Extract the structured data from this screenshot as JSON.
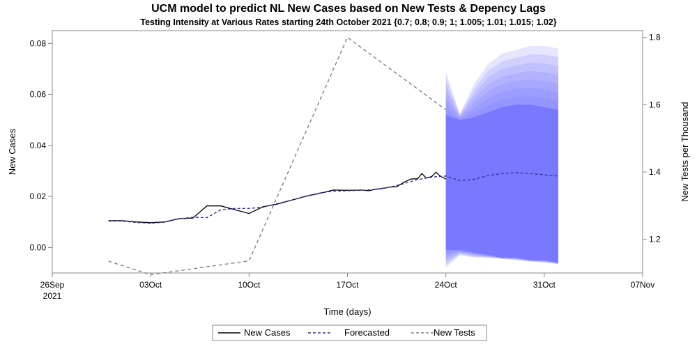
{
  "chart_data": {
    "type": "line",
    "title": "UCM model to predict NL New Cases based on New Tests & Depency Lags",
    "subtitle": "Testing Intensity at Various Rates starting 24th October 2021 {0.7; 0.8; 0.9; 1; 1.005; 1.01; 1.015; 1.02}",
    "xlabel": "Time (days)",
    "ylabel_left": "New Cases",
    "ylabel_right": "New Tests per Thousand",
    "x_range": [
      "2021-09-26",
      "2021-11-07"
    ],
    "y_left_range": [
      -0.01,
      0.085
    ],
    "y_right_range": [
      1.1,
      1.82
    ],
    "x_ticks": [
      {
        "date": "2021-09-26",
        "label": "26Sep",
        "sub": "2021"
      },
      {
        "date": "2021-10-03",
        "label": "03Oct",
        "sub": ""
      },
      {
        "date": "2021-10-10",
        "label": "10Oct",
        "sub": ""
      },
      {
        "date": "2021-10-17",
        "label": "17Oct",
        "sub": ""
      },
      {
        "date": "2021-10-24",
        "label": "24Oct",
        "sub": ""
      },
      {
        "date": "2021-10-31",
        "label": "31Oct",
        "sub": ""
      },
      {
        "date": "2021-11-07",
        "label": "07Nov",
        "sub": ""
      }
    ],
    "y_left_ticks": [
      0.0,
      0.02,
      0.04,
      0.06,
      0.08
    ],
    "y_left_tick_labels": [
      "0.00",
      "0.02",
      "0.04",
      "0.06",
      "0.08"
    ],
    "y_right_ticks": [
      1.2,
      1.4,
      1.6,
      1.8
    ],
    "y_right_tick_labels": [
      "1.2",
      "1.4",
      "1.6",
      "1.8"
    ],
    "series": [
      {
        "name": "New Cases",
        "axis": "left",
        "color": "#000000",
        "style": "solid",
        "points": [
          [
            "2021-09-30",
            0.0105
          ],
          [
            "2021-10-01",
            0.0105
          ],
          [
            "2021-10-02",
            0.01
          ],
          [
            "2021-10-03",
            0.0097
          ],
          [
            "2021-10-04",
            0.01
          ],
          [
            "2021-10-05",
            0.0113
          ],
          [
            "2021-10-06",
            0.0115
          ],
          [
            "2021-10-07",
            0.0163
          ],
          [
            "2021-10-08",
            0.0163
          ],
          [
            "2021-10-09",
            0.0148
          ],
          [
            "2021-10-10",
            0.0133
          ],
          [
            "2021-10-11",
            0.016
          ],
          [
            "2021-10-12",
            0.017
          ],
          [
            "2021-10-13",
            0.0185
          ],
          [
            "2021-10-14",
            0.02
          ],
          [
            "2021-10-15",
            0.0212
          ],
          [
            "2021-10-16",
            0.0225
          ],
          [
            "2021-10-17",
            0.0224
          ],
          [
            "2021-10-18",
            0.0225
          ],
          [
            "2021-10-18.5",
            0.0222
          ],
          [
            "2021-10-19",
            0.0228
          ],
          [
            "2021-10-19.5",
            0.0231
          ],
          [
            "2021-10-20",
            0.0237
          ],
          [
            "2021-10-20.5",
            0.0238
          ],
          [
            "2021-10-21",
            0.0255
          ],
          [
            "2021-10-21.5",
            0.0268
          ],
          [
            "2021-10-22",
            0.027
          ],
          [
            "2021-10-22.3",
            0.029
          ],
          [
            "2021-10-22.6",
            0.0272
          ],
          [
            "2021-10-23",
            0.0278
          ],
          [
            "2021-10-23.3",
            0.0295
          ],
          [
            "2021-10-23.6",
            0.028
          ],
          [
            "2021-10-24",
            0.0268
          ]
        ]
      },
      {
        "name": "Forecasted",
        "axis": "left",
        "color": "#333399",
        "style": "dashed",
        "points": [
          [
            "2021-09-30",
            0.0103
          ],
          [
            "2021-10-01",
            0.0103
          ],
          [
            "2021-10-02",
            0.0098
          ],
          [
            "2021-10-03",
            0.0095
          ],
          [
            "2021-10-04",
            0.0099
          ],
          [
            "2021-10-05",
            0.0112
          ],
          [
            "2021-10-06",
            0.0118
          ],
          [
            "2021-10-07",
            0.0117
          ],
          [
            "2021-10-08",
            0.0148
          ],
          [
            "2021-10-09",
            0.0153
          ],
          [
            "2021-10-10",
            0.0153
          ],
          [
            "2021-10-11",
            0.0158
          ],
          [
            "2021-10-12",
            0.0172
          ],
          [
            "2021-10-13",
            0.0185
          ],
          [
            "2021-10-14",
            0.0201
          ],
          [
            "2021-10-15",
            0.0213
          ],
          [
            "2021-10-16",
            0.0221
          ],
          [
            "2021-10-17",
            0.0222
          ],
          [
            "2021-10-18",
            0.0224
          ],
          [
            "2021-10-19",
            0.0228
          ],
          [
            "2021-10-20",
            0.0236
          ],
          [
            "2021-10-21",
            0.025
          ],
          [
            "2021-10-22",
            0.0266
          ],
          [
            "2021-10-23",
            0.0276
          ],
          [
            "2021-10-24",
            0.028
          ],
          [
            "2021-10-25",
            0.0262
          ],
          [
            "2021-10-26",
            0.0267
          ],
          [
            "2021-10-27",
            0.0282
          ],
          [
            "2021-10-28",
            0.029
          ],
          [
            "2021-10-29",
            0.0293
          ],
          [
            "2021-10-30",
            0.029
          ],
          [
            "2021-10-31",
            0.0285
          ],
          [
            "2021-11-01",
            0.028
          ]
        ]
      },
      {
        "name": "New Tests",
        "axis": "right",
        "color": "#808080",
        "style": "dashed",
        "points": [
          [
            "2021-09-30",
            1.135
          ],
          [
            "2021-10-03",
            1.095
          ],
          [
            "2021-10-10",
            1.136
          ],
          [
            "2021-10-17",
            1.8
          ],
          [
            "2021-10-24",
            1.585
          ]
        ]
      }
    ],
    "forecast_bands": {
      "color": "#7777ff",
      "label_rates": [
        0.7,
        0.8,
        0.9,
        1,
        1.005,
        1.01,
        1.015,
        1.02
      ],
      "x": [
        "2021-10-24",
        "2021-10-25",
        "2021-10-26",
        "2021-10-27",
        "2021-10-28",
        "2021-10-29",
        "2021-10-30",
        "2021-10-31",
        "2021-11-01"
      ],
      "inner_upper": [
        0.052,
        0.05,
        0.051,
        0.053,
        0.055,
        0.056,
        0.056,
        0.055,
        0.054
      ],
      "inner_lower": [
        -0.001,
        -0.001,
        -0.002,
        -0.003,
        -0.004,
        -0.004,
        -0.005,
        -0.005,
        -0.006
      ],
      "outer_upper": [
        0.069,
        0.0525,
        0.064,
        0.072,
        0.076,
        0.0775,
        0.079,
        0.079,
        0.078
      ],
      "outer_lower": [
        -0.008,
        -0.003,
        -0.004,
        -0.004,
        -0.0045,
        -0.005,
        -0.0055,
        -0.006,
        -0.0065
      ]
    },
    "legend": {
      "placement": "bottom",
      "items": [
        {
          "label": "New Cases",
          "color": "#000000",
          "style": "solid"
        },
        {
          "label": "Forecasted",
          "color": "#333399",
          "style": "dashed"
        },
        {
          "label": "New Tests",
          "color": "#808080",
          "style": "dashed"
        }
      ]
    },
    "grid": false
  }
}
